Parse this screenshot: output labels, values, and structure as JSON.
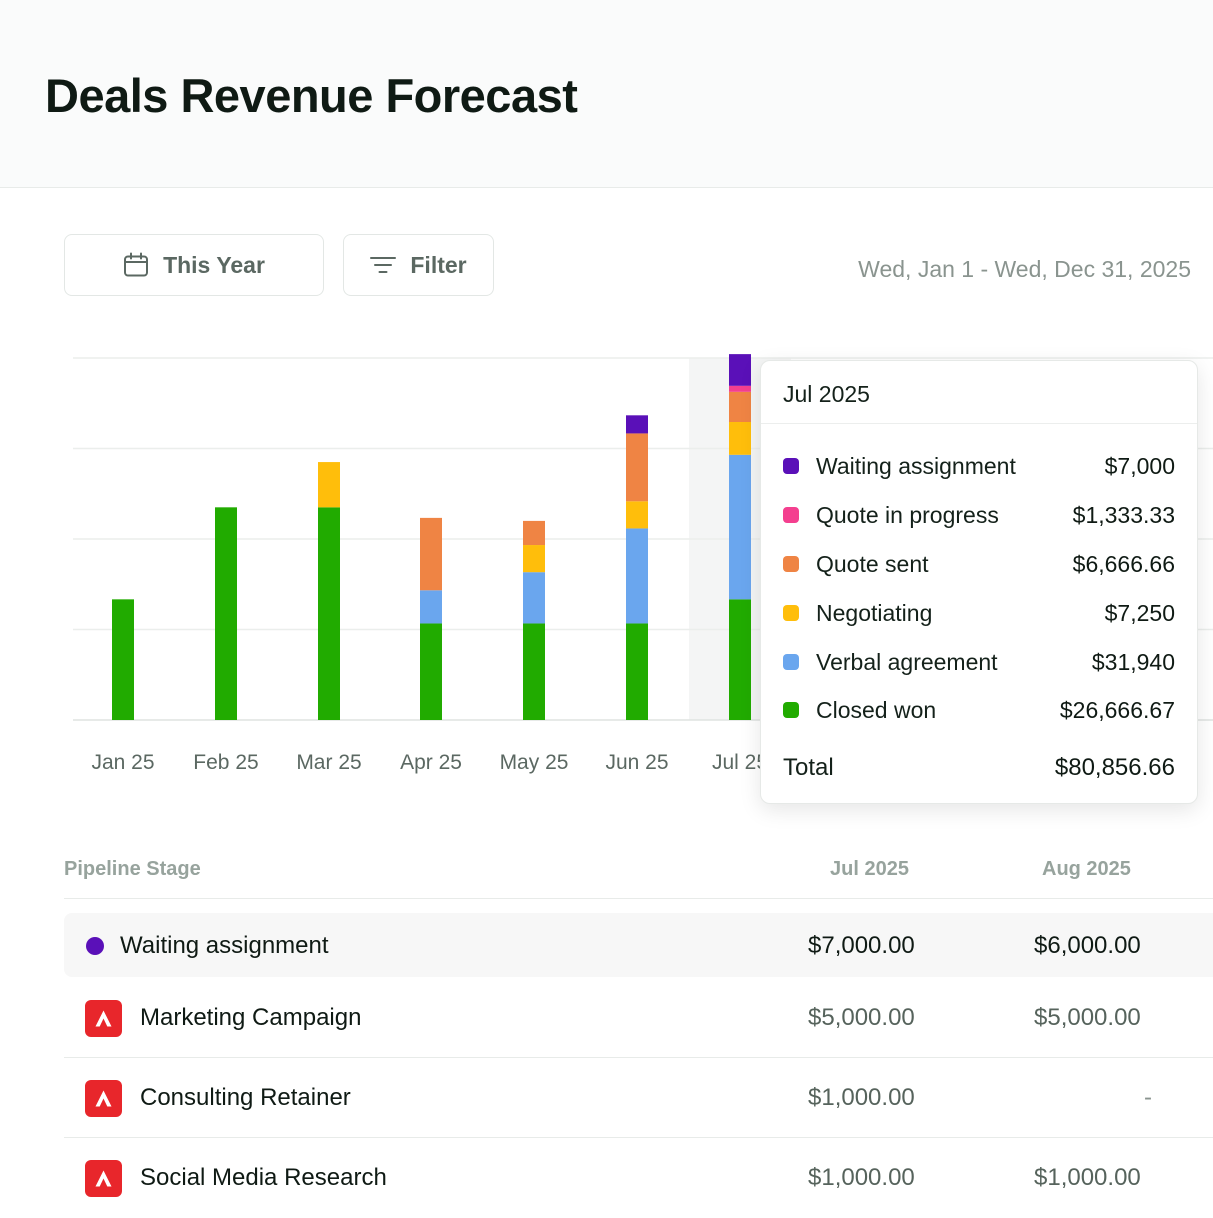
{
  "header": {
    "title": "Deals Revenue Forecast"
  },
  "toolbar": {
    "period_label": "This Year",
    "period_icon": "calendar-icon",
    "filter_label": "Filter",
    "filter_icon": "filter-icon",
    "date_range": "Wed, Jan 1 - Wed, Dec 31, 2025"
  },
  "chart_data": {
    "type": "bar",
    "stacked": true,
    "categories": [
      "Jan 25",
      "Feb 25",
      "Mar 25",
      "Apr 25",
      "May 25",
      "Jun 25",
      "Jul 25"
    ],
    "series": [
      {
        "name": "Closed won",
        "color": "#21ab00",
        "values": [
          26666.67,
          47000,
          47000,
          21333.33,
          21333.33,
          21333.33,
          26666.67
        ]
      },
      {
        "name": "Verbal agreement",
        "color": "#6aa6ee",
        "values": [
          0,
          0,
          0,
          7333.33,
          11333.33,
          21000,
          31940
        ]
      },
      {
        "name": "Negotiating",
        "color": "#ffbe0b",
        "values": [
          0,
          0,
          10000,
          0,
          6000,
          6000,
          7250
        ]
      },
      {
        "name": "Quote sent",
        "color": "#ef8444",
        "values": [
          0,
          0,
          0,
          16000,
          5333.33,
          15000,
          6666.66
        ]
      },
      {
        "name": "Quote in progress",
        "color": "#f43f8f",
        "values": [
          0,
          0,
          0,
          0,
          0,
          0,
          1333.33
        ]
      },
      {
        "name": "Waiting assignment",
        "color": "#5a10b8",
        "values": [
          0,
          0,
          0,
          0,
          0,
          4000,
          7000
        ]
      }
    ],
    "ylim": [
      0,
      80000
    ],
    "grid": true,
    "highlighted_category": "Jul 25",
    "title": "",
    "xlabel": "",
    "ylabel": ""
  },
  "tooltip": {
    "title": "Jul 2025",
    "rows": [
      {
        "label": "Waiting assignment",
        "value": "$7,000",
        "color": "#5a10b8"
      },
      {
        "label": "Quote in progress",
        "value": "$1,333.33",
        "color": "#f43f8f"
      },
      {
        "label": "Quote sent",
        "value": "$6,666.66",
        "color": "#ef8444"
      },
      {
        "label": "Negotiating",
        "value": "$7,250",
        "color": "#ffbe0b"
      },
      {
        "label": "Verbal agreement",
        "value": "$31,940",
        "color": "#6aa6ee"
      },
      {
        "label": "Closed won",
        "value": "$26,666.67",
        "color": "#21ab00"
      }
    ],
    "total_label": "Total",
    "total_value": "$80,856.66"
  },
  "table": {
    "headers": {
      "stage": "Pipeline Stage",
      "jul": "Jul 2025",
      "aug": "Aug 2025"
    },
    "stage": {
      "label": "Waiting assignment",
      "color": "#5a10b8",
      "jul": "$7,000.00",
      "aug": "$6,000.00"
    },
    "deals": [
      {
        "name": "Marketing Campaign",
        "jul": "$5,000.00",
        "aug": "$5,000.00",
        "icon": "company-logo-icon"
      },
      {
        "name": "Consulting Retainer",
        "jul": "$1,000.00",
        "aug": "-",
        "icon": "company-logo-icon"
      },
      {
        "name": "Social Media Research",
        "jul": "$1,000.00",
        "aug": "$1,000.00",
        "icon": "company-logo-icon"
      }
    ]
  }
}
